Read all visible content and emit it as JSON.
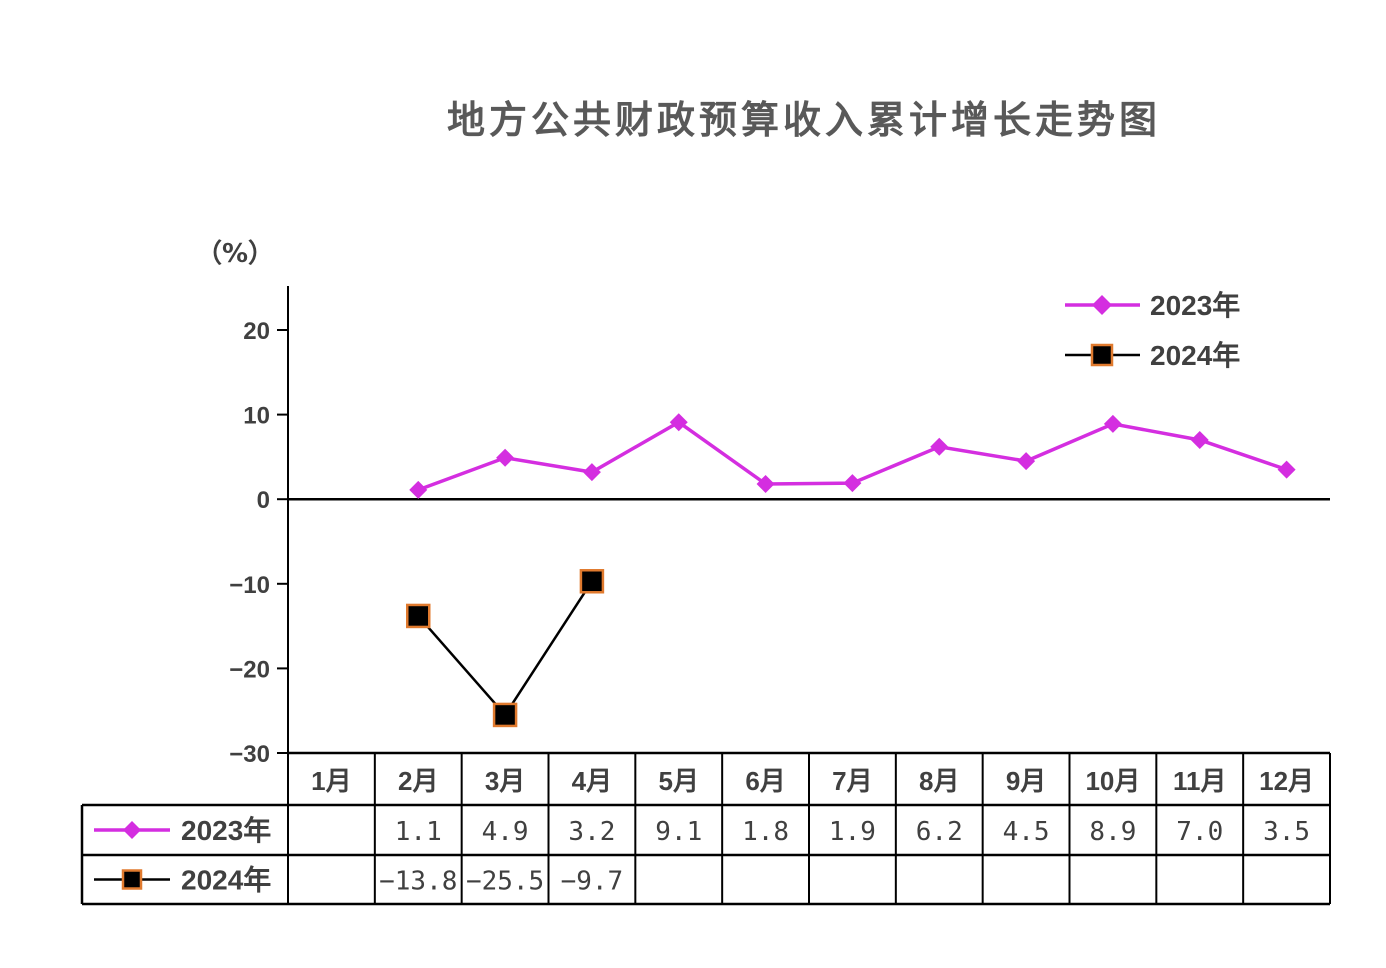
{
  "chart_data": {
    "type": "line",
    "title": "地方公共财政预算收入累计增长走势图",
    "ylabel": "（%）",
    "ylim": [
      -30,
      25
    ],
    "yticks": [
      "20",
      "10",
      "0",
      "−10",
      "−20",
      "−30"
    ],
    "ytick_values": [
      20,
      10,
      0,
      -10,
      -20,
      -30
    ],
    "categories": [
      "1月",
      "2月",
      "3月",
      "4月",
      "5月",
      "6月",
      "7月",
      "8月",
      "9月",
      "10月",
      "11月",
      "12月"
    ],
    "legend_position": "top-right",
    "series": [
      {
        "name": "2023年",
        "color": "#d42ee0",
        "marker": "diamond",
        "values": [
          null,
          1.1,
          4.9,
          3.2,
          9.1,
          1.8,
          1.9,
          6.2,
          4.5,
          8.9,
          7.0,
          3.5
        ],
        "labels": [
          "",
          "1.1",
          "4.9",
          "3.2",
          "9.1",
          "1.8",
          "1.9",
          "6.2",
          "4.5",
          "8.9",
          "7.0",
          "3.5"
        ]
      },
      {
        "name": "2024年",
        "color": "#000000",
        "marker_edge_color": "#e07a2e",
        "marker": "square",
        "values": [
          null,
          -13.8,
          -25.5,
          -9.7,
          null,
          null,
          null,
          null,
          null,
          null,
          null,
          null
        ],
        "labels": [
          "",
          "−13.8",
          "−25.5",
          "−9.7",
          "",
          "",
          "",
          "",
          "",
          "",
          "",
          ""
        ]
      }
    ],
    "grid": false
  }
}
